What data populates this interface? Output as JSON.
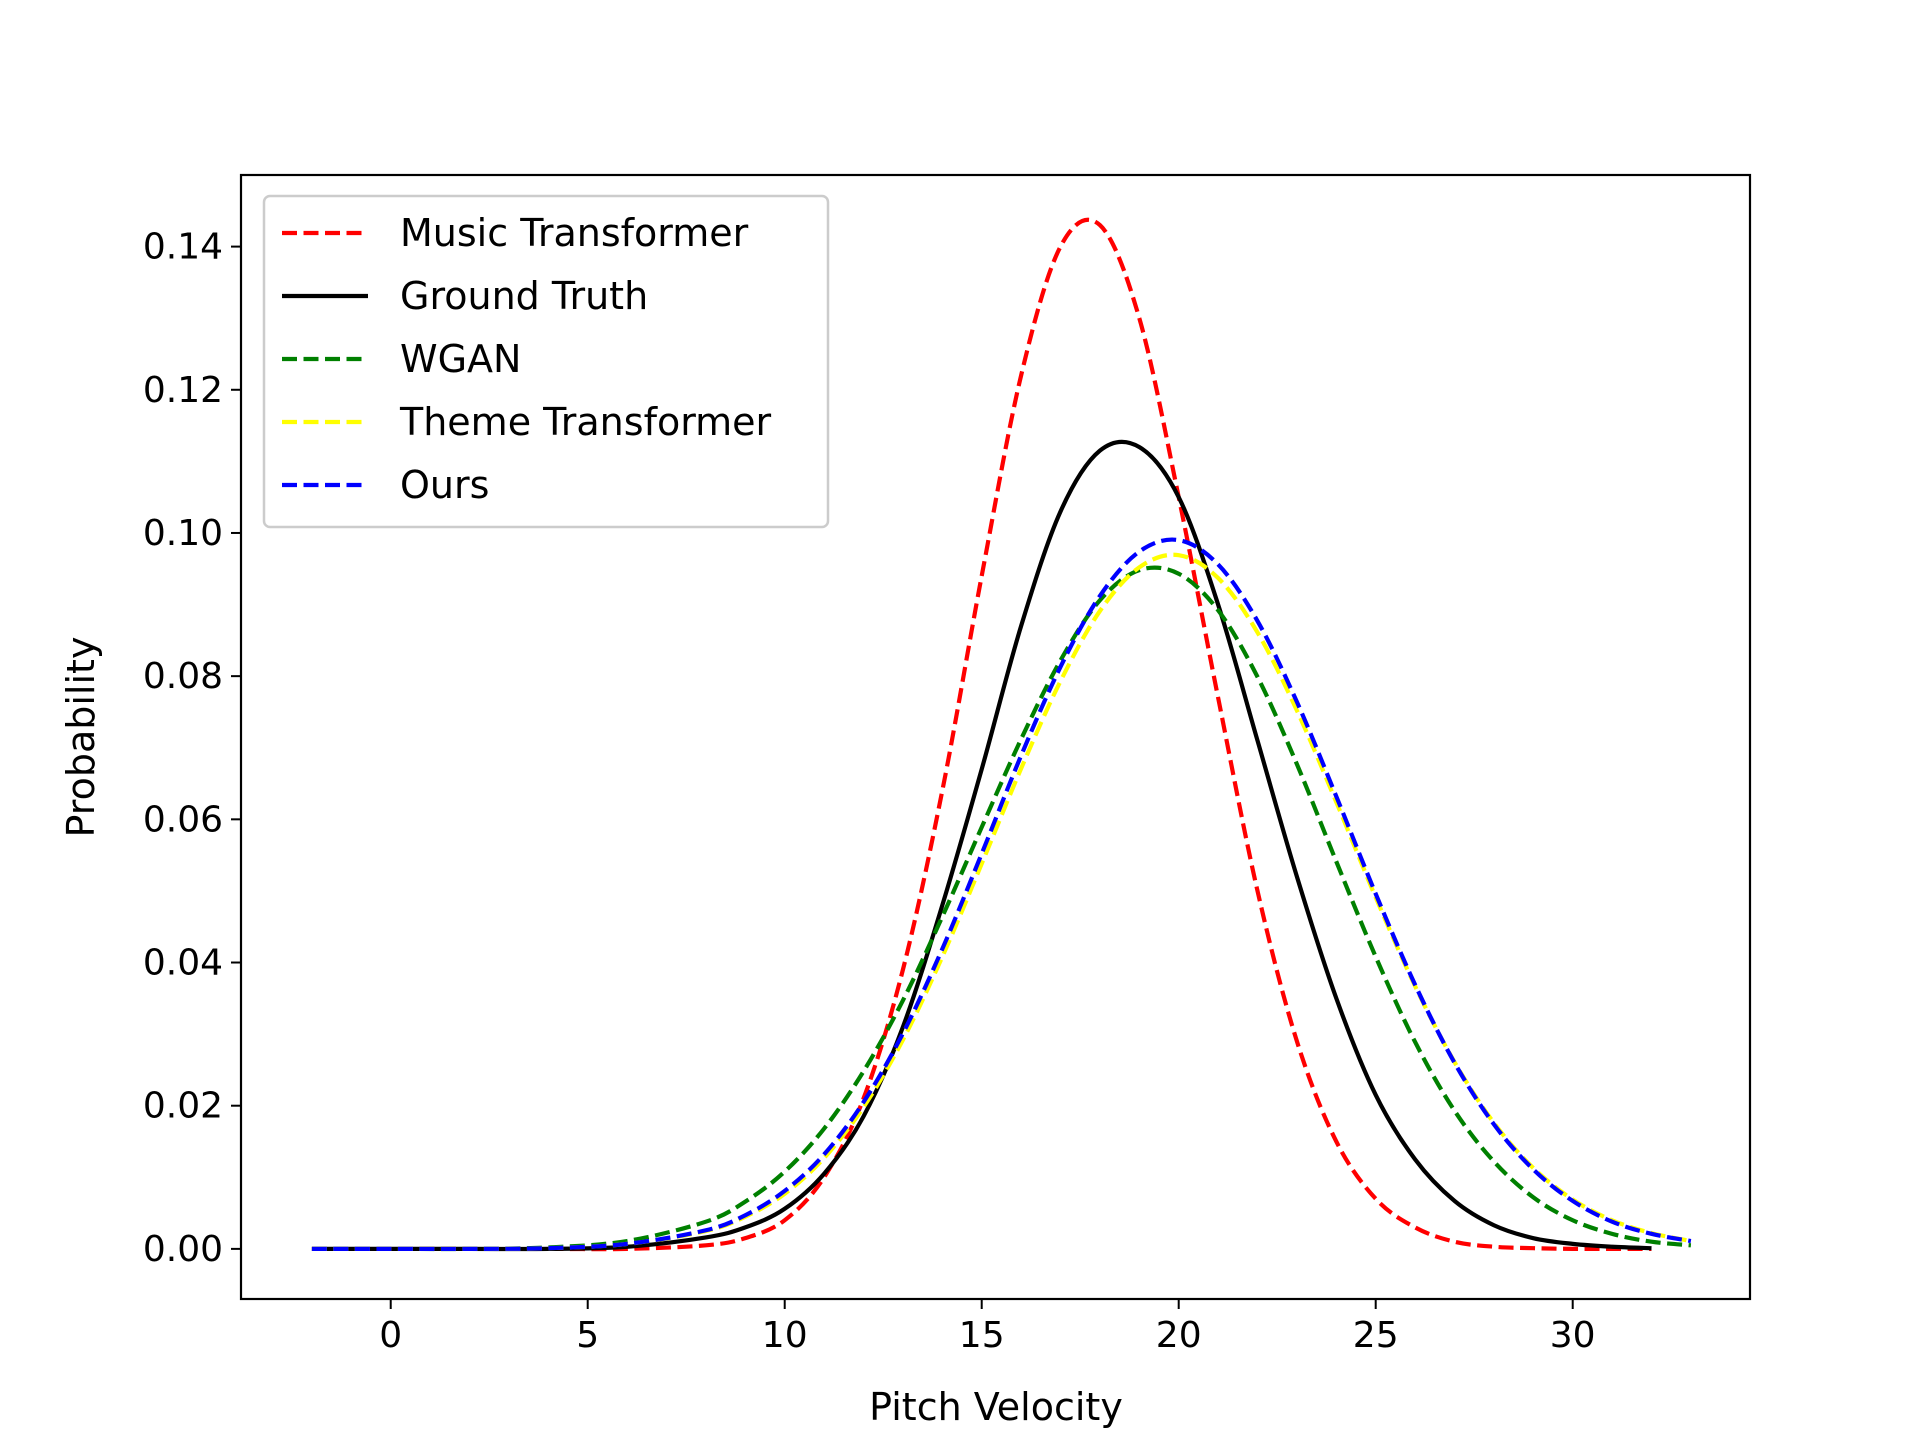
{
  "chart_data": {
    "type": "line",
    "title": "",
    "xlabel": "Pitch Velocity",
    "ylabel": "Probability",
    "xlim": [
      -3.8,
      34.5
    ],
    "ylim": [
      -0.007,
      0.15
    ],
    "xticks": [
      0,
      5,
      10,
      15,
      20,
      25,
      30
    ],
    "yticks": [
      0.0,
      0.02,
      0.04,
      0.06,
      0.08,
      0.1,
      0.12,
      0.14
    ],
    "xtick_labels": [
      "0",
      "5",
      "10",
      "15",
      "20",
      "25",
      "30"
    ],
    "ytick_labels": [
      "0.00",
      "0.02",
      "0.04",
      "0.06",
      "0.08",
      "0.10",
      "0.12",
      "0.14"
    ],
    "grid": false,
    "legend_position": "upper-left",
    "series": [
      {
        "name": "Music Transformer",
        "color": "#ff0000",
        "style": "dashed",
        "x": [
          -2,
          0,
          2,
          4,
          6,
          8,
          9,
          10,
          11,
          12,
          13,
          14,
          15,
          16,
          17,
          18,
          19,
          20,
          21,
          22,
          23,
          24,
          25,
          26,
          27,
          28,
          29,
          30,
          31,
          32
        ],
        "values": [
          0.0,
          0.0,
          0.0,
          0.0,
          0.0,
          0.0005,
          0.0015,
          0.004,
          0.01,
          0.021,
          0.039,
          0.064,
          0.094,
          0.122,
          0.14,
          0.143,
          0.13,
          0.105,
          0.077,
          0.05,
          0.029,
          0.015,
          0.007,
          0.003,
          0.001,
          0.0003,
          0.0001,
          0.0,
          0.0,
          0.0
        ]
      },
      {
        "name": "Ground Truth",
        "color": "#000000",
        "style": "solid",
        "x": [
          -2,
          0,
          2,
          4,
          6,
          8,
          9,
          10,
          11,
          12,
          13,
          14,
          15,
          16,
          17,
          18,
          19,
          20,
          21,
          22,
          23,
          24,
          25,
          26,
          27,
          28,
          29,
          30,
          31,
          32
        ],
        "values": [
          0.0,
          0.0,
          0.0,
          0.0,
          0.0003,
          0.0016,
          0.003,
          0.0056,
          0.0105,
          0.0185,
          0.031,
          0.048,
          0.067,
          0.087,
          0.103,
          0.1115,
          0.112,
          0.105,
          0.09,
          0.071,
          0.052,
          0.035,
          0.0215,
          0.0125,
          0.0067,
          0.0033,
          0.0015,
          0.0007,
          0.0003,
          0.0001
        ]
      },
      {
        "name": "WGAN",
        "color": "#008000",
        "style": "dashed",
        "x": [
          -2,
          0,
          2,
          4,
          6,
          8,
          9,
          10,
          11,
          12,
          13,
          14,
          15,
          16,
          17,
          18,
          19,
          20,
          21,
          22,
          23,
          24,
          25,
          26,
          27,
          28,
          29,
          30,
          31,
          32,
          33
        ],
        "values": [
          0.0,
          0.0,
          0.0,
          0.0002,
          0.0011,
          0.0038,
          0.0066,
          0.0108,
          0.0168,
          0.0248,
          0.0347,
          0.0464,
          0.0589,
          0.0712,
          0.0822,
          0.0906,
          0.0948,
          0.0943,
          0.0892,
          0.0799,
          0.0677,
          0.0541,
          0.0408,
          0.0289,
          0.0193,
          0.0122,
          0.0072,
          0.004,
          0.0021,
          0.001,
          0.0005
        ]
      },
      {
        "name": "Theme Transformer",
        "color": "#ffff00",
        "style": "dashed",
        "x": [
          -2,
          0,
          2,
          4,
          6,
          8,
          9,
          10,
          11,
          12,
          13,
          14,
          15,
          16,
          17,
          18,
          19,
          20,
          21,
          22,
          23,
          24,
          25,
          26,
          27,
          28,
          29,
          30,
          31,
          32,
          33
        ],
        "values": [
          0.0,
          0.0,
          0.0,
          0.0001,
          0.0007,
          0.0025,
          0.0045,
          0.0077,
          0.0127,
          0.0198,
          0.0292,
          0.0408,
          0.0538,
          0.0671,
          0.0793,
          0.0891,
          0.0952,
          0.0969,
          0.0937,
          0.0861,
          0.0752,
          0.0624,
          0.0491,
          0.0367,
          0.0261,
          0.0176,
          0.0113,
          0.0069,
          0.004,
          0.0022,
          0.0011
        ]
      },
      {
        "name": "Ours",
        "color": "#0000ff",
        "style": "dashed",
        "x": [
          -2,
          0,
          2,
          4,
          6,
          8,
          9,
          10,
          11,
          12,
          13,
          14,
          15,
          16,
          17,
          18,
          19,
          20,
          21,
          22,
          23,
          24,
          25,
          26,
          27,
          28,
          29,
          30,
          31,
          32,
          33
        ],
        "values": [
          0.0,
          0.0,
          0.0,
          0.0001,
          0.0007,
          0.0026,
          0.0047,
          0.0081,
          0.0132,
          0.0205,
          0.0301,
          0.0419,
          0.0552,
          0.0689,
          0.0813,
          0.0912,
          0.0974,
          0.099,
          0.0956,
          0.0877,
          0.0764,
          0.0632,
          0.0496,
          0.0369,
          0.026,
          0.0174,
          0.0111,
          0.0067,
          0.0038,
          0.0021,
          0.0011
        ]
      }
    ]
  }
}
